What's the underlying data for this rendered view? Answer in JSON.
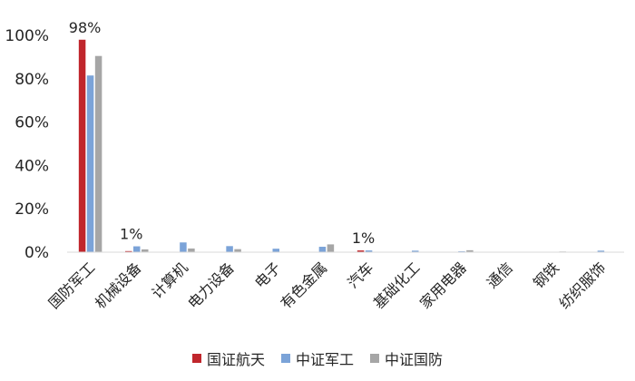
{
  "chart_data": {
    "type": "bar",
    "categories": [
      "国防军工",
      "机械设备",
      "计算机",
      "电力设备",
      "电子",
      "有色金属",
      "汽车",
      "基础化工",
      "家用电器",
      "通信",
      "钢铁",
      "纺织服饰"
    ],
    "series": [
      {
        "name": "国证航天",
        "color": "#C0262C",
        "values": [
          98,
          0.5,
          0,
          0,
          0,
          0,
          0.8,
          0,
          0,
          0,
          0,
          0
        ]
      },
      {
        "name": "中证军工",
        "color": "#7BA3D8",
        "values": [
          81.5,
          2.7,
          4.5,
          2.8,
          1.6,
          2.5,
          0.8,
          0.7,
          0.4,
          0,
          0,
          0.7
        ]
      },
      {
        "name": "中证国防",
        "color": "#A6A6A6",
        "values": [
          90.5,
          1.3,
          1.7,
          1.4,
          0,
          3.6,
          0,
          0,
          0.9,
          0,
          0.3,
          0
        ]
      }
    ],
    "ylim": [
      0,
      100
    ],
    "yticks": [
      "0%",
      "20%",
      "40%",
      "60%",
      "80%",
      "100%"
    ],
    "data_labels": [
      {
        "category_index": 0,
        "text": "98%"
      },
      {
        "category_index": 1,
        "text": "1%"
      },
      {
        "category_index": 6,
        "text": "1%"
      }
    ],
    "legend_position": "bottom",
    "grid": false
  }
}
